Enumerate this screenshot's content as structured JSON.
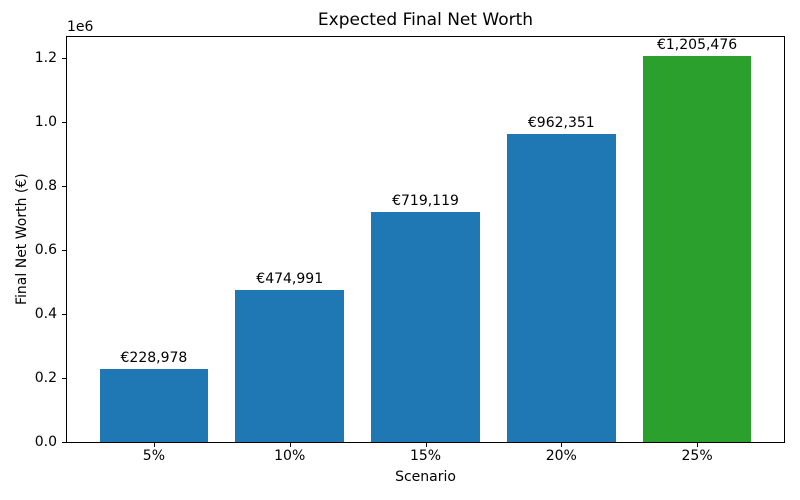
{
  "chart_data": {
    "type": "bar",
    "title": "Expected Final Net Worth",
    "xlabel": "Scenario",
    "ylabel": "Final Net Worth (€)",
    "categories": [
      "5%",
      "10%",
      "15%",
      "20%",
      "25%"
    ],
    "values": [
      228978,
      474991,
      719119,
      962351,
      1205476
    ],
    "value_labels": [
      "€228,978",
      "€474,991",
      "€719,119",
      "€962,351",
      "€1,205,476"
    ],
    "series": [
      {
        "name": "Final Net Worth",
        "values": [
          228978,
          474991,
          719119,
          962351,
          1205476
        ]
      }
    ],
    "bar_colors": [
      "#1f77b4",
      "#1f77b4",
      "#1f77b4",
      "#1f77b4",
      "#2ca02c"
    ],
    "highlight_color": "#2ca02c",
    "base_color": "#1f77b4",
    "background_color": "#ffffff",
    "text_color": "#000000",
    "grid": false,
    "legend": null,
    "bar_width_fraction": 0.8,
    "xlim": [
      -0.64,
      4.64
    ],
    "y_axis": {
      "offset_text": "1e6",
      "tick_labels": [
        "0.0",
        "0.2",
        "0.4",
        "0.6",
        "0.8",
        "1.0",
        "1.2"
      ],
      "tick_multiplier": 1000000,
      "ylim": [
        0,
        1265750
      ]
    }
  }
}
